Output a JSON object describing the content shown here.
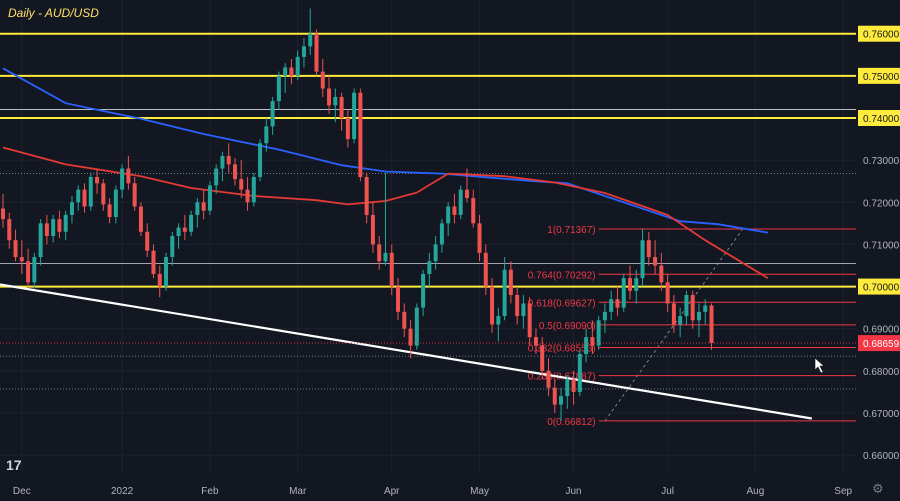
{
  "title": "Daily - AUD/USD",
  "logo_text": "17",
  "settings_icon": "gear-icon",
  "cursor_icon": "arrow-cursor-icon",
  "colors": {
    "background": "#131722",
    "grid": "#1e222d",
    "bullish": "#26a69a",
    "bearish": "#ef5350",
    "sma_blue": "#2962ff",
    "sma_red": "#e53935",
    "resistance": "#ffeb3b",
    "trendline": "#ffffff",
    "fib": "#f23645",
    "axis_text": "#b2b5be",
    "current_price": "#f23645"
  },
  "chart_data": {
    "type": "candlestick",
    "symbol": "AUD/USD",
    "timeframe": "Daily",
    "x_ticks": [
      "Dec",
      "2022",
      "Feb",
      "Mar",
      "Apr",
      "May",
      "Jun",
      "Jul",
      "Aug",
      "Sep"
    ],
    "y_ticks": [
      "0.76000",
      "0.75000",
      "0.74000",
      "0.73000",
      "0.72000",
      "0.71000",
      "0.70000",
      "0.69000",
      "0.68000",
      "0.67000",
      "0.66000"
    ],
    "ylim": [
      0.656,
      0.768
    ],
    "current_price": "0.68659",
    "horizontal_levels": [
      {
        "value": 0.76,
        "label": "0.76000",
        "style": "yellow-thick"
      },
      {
        "value": 0.75,
        "label": "0.75000",
        "style": "yellow-thick"
      },
      {
        "value": 0.74,
        "label": "0.74000",
        "style": "yellow-thick"
      },
      {
        "value": 0.7,
        "label": "0.70000",
        "style": "yellow-thick"
      },
      {
        "value": 0.742,
        "style": "white-thin"
      },
      {
        "value": 0.7268,
        "style": "white-dotted"
      },
      {
        "value": 0.7055,
        "style": "white-thin"
      },
      {
        "value": 0.6835,
        "style": "white-dotted"
      },
      {
        "value": 0.6757,
        "style": "white-dotted"
      }
    ],
    "fibonacci": [
      {
        "label": "1(0.71367)",
        "value": 0.71367
      },
      {
        "label": "0.764(0.70292)",
        "value": 0.70292
      },
      {
        "label": "0.618(0.69627)",
        "value": 0.69627
      },
      {
        "label": "0.5(0.69090)",
        "value": 0.6909
      },
      {
        "label": "0.382(0.68553)",
        "value": 0.68553
      },
      {
        "label": "0.236(0.67887)",
        "value": 0.67887
      },
      {
        "label": "0(0.66812)",
        "value": 0.66812
      }
    ],
    "trendline": {
      "start": [
        0,
        0.7005
      ],
      "end": [
        129,
        0.6687
      ]
    },
    "sma_blue": [
      [
        0,
        0.7518
      ],
      [
        10,
        0.7435
      ],
      [
        22,
        0.7398
      ],
      [
        32,
        0.7362
      ],
      [
        44,
        0.7325
      ],
      [
        54,
        0.7288
      ],
      [
        61,
        0.7273
      ],
      [
        70,
        0.7268
      ],
      [
        78,
        0.7258
      ],
      [
        84,
        0.7251
      ],
      [
        90,
        0.7245
      ],
      [
        96,
        0.7215
      ],
      [
        102,
        0.7185
      ],
      [
        108,
        0.7155
      ],
      [
        114,
        0.7148
      ],
      [
        122,
        0.7128
      ]
    ],
    "sma_red": [
      [
        0,
        0.733
      ],
      [
        10,
        0.729
      ],
      [
        22,
        0.7262
      ],
      [
        30,
        0.7234
      ],
      [
        40,
        0.7215
      ],
      [
        50,
        0.7205
      ],
      [
        55,
        0.7195
      ],
      [
        61,
        0.7203
      ],
      [
        66,
        0.7223
      ],
      [
        71,
        0.7268
      ],
      [
        80,
        0.7262
      ],
      [
        88,
        0.7247
      ],
      [
        96,
        0.7222
      ],
      [
        106,
        0.717
      ],
      [
        112,
        0.711
      ],
      [
        117,
        0.7065
      ],
      [
        122,
        0.702
      ]
    ],
    "candles_ohlc": [
      [
        0.7185,
        0.722,
        0.714,
        0.716
      ],
      [
        0.716,
        0.7175,
        0.709,
        0.711
      ],
      [
        0.711,
        0.7135,
        0.706,
        0.707
      ],
      [
        0.707,
        0.711,
        0.703,
        0.706
      ],
      [
        0.706,
        0.709,
        0.7,
        0.701
      ],
      [
        0.701,
        0.708,
        0.6995,
        0.707
      ],
      [
        0.707,
        0.716,
        0.705,
        0.715
      ],
      [
        0.715,
        0.717,
        0.71,
        0.712
      ],
      [
        0.712,
        0.717,
        0.7105,
        0.716
      ],
      [
        0.716,
        0.718,
        0.7115,
        0.713
      ],
      [
        0.713,
        0.718,
        0.711,
        0.717
      ],
      [
        0.717,
        0.7215,
        0.715,
        0.72
      ],
      [
        0.72,
        0.724,
        0.718,
        0.723
      ],
      [
        0.723,
        0.7245,
        0.7175,
        0.719
      ],
      [
        0.719,
        0.727,
        0.718,
        0.726
      ],
      [
        0.726,
        0.728,
        0.722,
        0.7245
      ],
      [
        0.7245,
        0.7255,
        0.718,
        0.7195
      ],
      [
        0.7195,
        0.721,
        0.715,
        0.7165
      ],
      [
        0.7165,
        0.724,
        0.715,
        0.723
      ],
      [
        0.723,
        0.729,
        0.721,
        0.728
      ],
      [
        0.728,
        0.731,
        0.723,
        0.7245
      ],
      [
        0.7245,
        0.726,
        0.718,
        0.719
      ],
      [
        0.719,
        0.72,
        0.712,
        0.713
      ],
      [
        0.713,
        0.715,
        0.707,
        0.7085
      ],
      [
        0.7085,
        0.71,
        0.702,
        0.703
      ],
      [
        0.703,
        0.705,
        0.6975,
        0.7
      ],
      [
        0.7,
        0.708,
        0.699,
        0.707
      ],
      [
        0.707,
        0.713,
        0.705,
        0.712
      ],
      [
        0.712,
        0.715,
        0.709,
        0.714
      ],
      [
        0.714,
        0.717,
        0.711,
        0.713
      ],
      [
        0.713,
        0.718,
        0.712,
        0.717
      ],
      [
        0.717,
        0.721,
        0.714,
        0.72
      ],
      [
        0.72,
        0.723,
        0.716,
        0.718
      ],
      [
        0.718,
        0.725,
        0.717,
        0.724
      ],
      [
        0.724,
        0.729,
        0.722,
        0.728
      ],
      [
        0.728,
        0.732,
        0.725,
        0.731
      ],
      [
        0.731,
        0.734,
        0.727,
        0.729
      ],
      [
        0.729,
        0.7305,
        0.724,
        0.7255
      ],
      [
        0.7255,
        0.73,
        0.721,
        0.723
      ],
      [
        0.723,
        0.726,
        0.718,
        0.72
      ],
      [
        0.72,
        0.727,
        0.719,
        0.726
      ],
      [
        0.726,
        0.735,
        0.725,
        0.734
      ],
      [
        0.734,
        0.74,
        0.732,
        0.738
      ],
      [
        0.738,
        0.745,
        0.736,
        0.744
      ],
      [
        0.744,
        0.751,
        0.742,
        0.75
      ],
      [
        0.75,
        0.753,
        0.746,
        0.752
      ],
      [
        0.752,
        0.754,
        0.748,
        0.75
      ],
      [
        0.75,
        0.756,
        0.749,
        0.7545
      ],
      [
        0.7545,
        0.759,
        0.752,
        0.757
      ],
      [
        0.757,
        0.766,
        0.755,
        0.76
      ],
      [
        0.76,
        0.761,
        0.75,
        0.751
      ],
      [
        0.751,
        0.754,
        0.745,
        0.747
      ],
      [
        0.747,
        0.75,
        0.741,
        0.743
      ],
      [
        0.743,
        0.747,
        0.739,
        0.745
      ],
      [
        0.745,
        0.746,
        0.737,
        0.74
      ],
      [
        0.74,
        0.742,
        0.733,
        0.735
      ],
      [
        0.735,
        0.747,
        0.734,
        0.746
      ],
      [
        0.746,
        0.747,
        0.725,
        0.726
      ],
      [
        0.726,
        0.727,
        0.715,
        0.717
      ],
      [
        0.717,
        0.72,
        0.708,
        0.71
      ],
      [
        0.71,
        0.712,
        0.704,
        0.706
      ],
      [
        0.706,
        0.727,
        0.705,
        0.708
      ],
      [
        0.708,
        0.71,
        0.698,
        0.7
      ],
      [
        0.7,
        0.702,
        0.692,
        0.694
      ],
      [
        0.694,
        0.696,
        0.688,
        0.69
      ],
      [
        0.69,
        0.692,
        0.683,
        0.686
      ],
      [
        0.686,
        0.696,
        0.685,
        0.695
      ],
      [
        0.695,
        0.704,
        0.693,
        0.703
      ],
      [
        0.703,
        0.708,
        0.7,
        0.706
      ],
      [
        0.706,
        0.712,
        0.704,
        0.71
      ],
      [
        0.71,
        0.716,
        0.708,
        0.715
      ],
      [
        0.715,
        0.72,
        0.712,
        0.719
      ],
      [
        0.719,
        0.722,
        0.715,
        0.717
      ],
      [
        0.717,
        0.724,
        0.716,
        0.723
      ],
      [
        0.723,
        0.728,
        0.72,
        0.721
      ],
      [
        0.721,
        0.723,
        0.714,
        0.715
      ],
      [
        0.715,
        0.717,
        0.706,
        0.708
      ],
      [
        0.708,
        0.71,
        0.698,
        0.7
      ],
      [
        0.7,
        0.702,
        0.689,
        0.691
      ],
      [
        0.691,
        0.695,
        0.687,
        0.693
      ],
      [
        0.693,
        0.707,
        0.692,
        0.704
      ],
      [
        0.704,
        0.706,
        0.696,
        0.698
      ],
      [
        0.698,
        0.7,
        0.691,
        0.693
      ],
      [
        0.693,
        0.698,
        0.69,
        0.696
      ],
      [
        0.696,
        0.6975,
        0.686,
        0.688
      ],
      [
        0.688,
        0.69,
        0.684,
        0.686
      ],
      [
        0.686,
        0.688,
        0.678,
        0.68
      ],
      [
        0.68,
        0.683,
        0.674,
        0.676
      ],
      [
        0.676,
        0.678,
        0.67,
        0.672
      ],
      [
        0.672,
        0.676,
        0.6681,
        0.674
      ],
      [
        0.674,
        0.679,
        0.671,
        0.678
      ],
      [
        0.678,
        0.68,
        0.672,
        0.675
      ],
      [
        0.675,
        0.685,
        0.674,
        0.684
      ],
      [
        0.684,
        0.69,
        0.682,
        0.688
      ],
      [
        0.688,
        0.692,
        0.684,
        0.686
      ],
      [
        0.686,
        0.693,
        0.685,
        0.692
      ],
      [
        0.692,
        0.696,
        0.689,
        0.694
      ],
      [
        0.694,
        0.699,
        0.692,
        0.697
      ],
      [
        0.697,
        0.7,
        0.693,
        0.695
      ],
      [
        0.695,
        0.703,
        0.694,
        0.702
      ],
      [
        0.702,
        0.705,
        0.697,
        0.699
      ],
      [
        0.699,
        0.704,
        0.696,
        0.702
      ],
      [
        0.702,
        0.7137,
        0.7,
        0.711
      ],
      [
        0.711,
        0.713,
        0.705,
        0.707
      ],
      [
        0.707,
        0.711,
        0.703,
        0.705
      ],
      [
        0.705,
        0.708,
        0.699,
        0.701
      ],
      [
        0.701,
        0.703,
        0.694,
        0.696
      ],
      [
        0.696,
        0.698,
        0.689,
        0.691
      ],
      [
        0.691,
        0.695,
        0.688,
        0.693
      ],
      [
        0.693,
        0.699,
        0.691,
        0.698
      ],
      [
        0.698,
        0.699,
        0.69,
        0.692
      ],
      [
        0.692,
        0.696,
        0.688,
        0.694
      ],
      [
        0.694,
        0.697,
        0.691,
        0.6955
      ],
      [
        0.6955,
        0.696,
        0.685,
        0.6866
      ]
    ]
  }
}
